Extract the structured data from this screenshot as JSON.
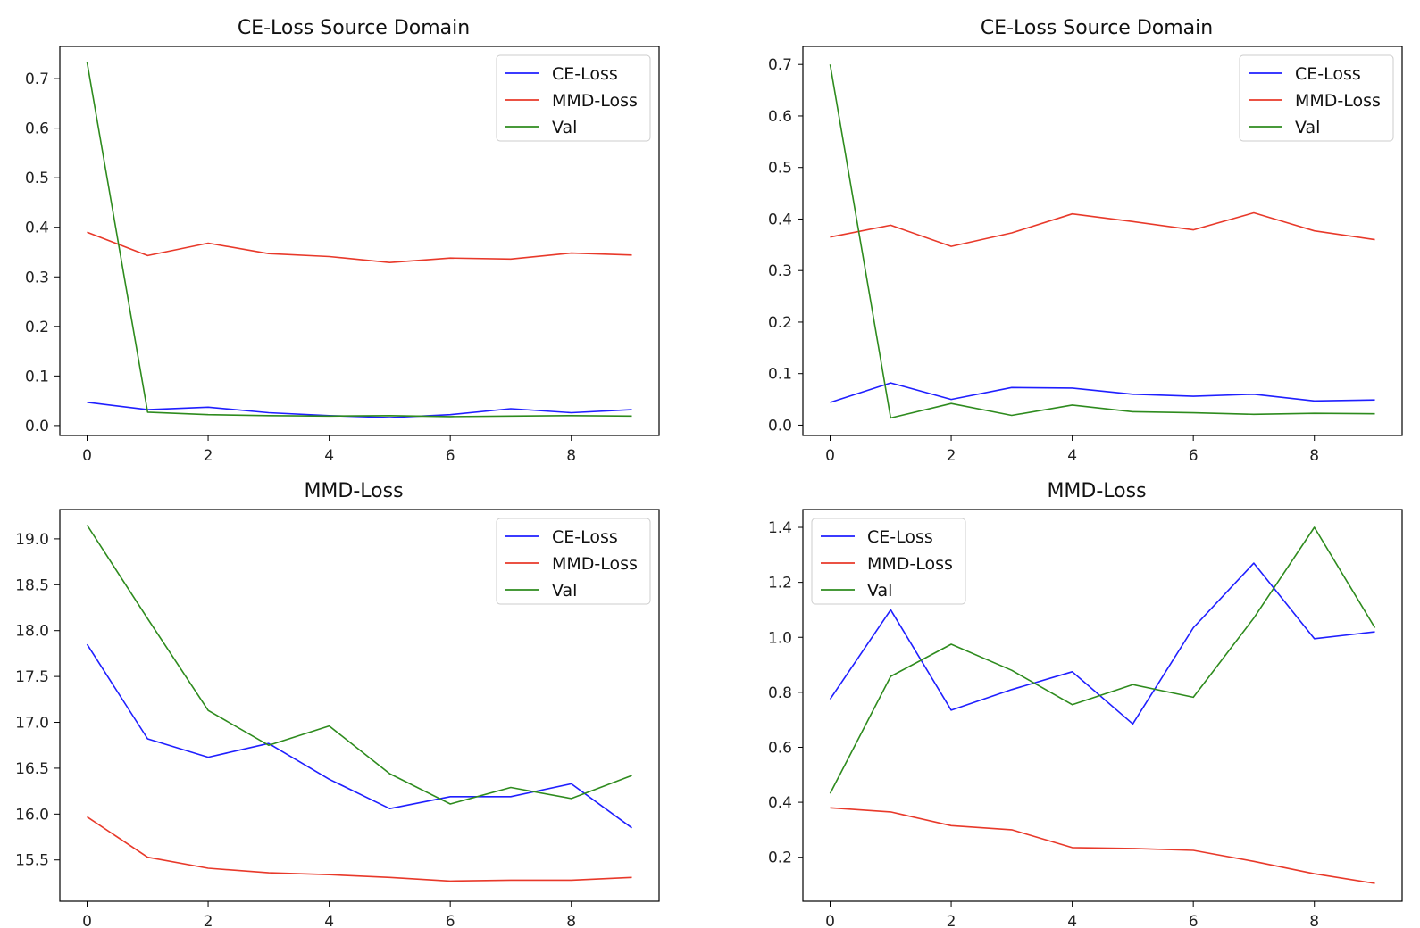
{
  "colors": {
    "ce_loss": "#1f1fff",
    "mmd_loss": "#e8392a",
    "val": "#2e8b1e",
    "frame": "#000000",
    "legend_border": "#cccccc"
  },
  "chart_data": [
    {
      "type": "line",
      "title": "CE-Loss Source Domain",
      "x": [
        0,
        1,
        2,
        3,
        4,
        5,
        6,
        7,
        8,
        9
      ],
      "xlim": [
        -0.45,
        9.45
      ],
      "ylim": [
        -0.02,
        0.765
      ],
      "xticks": [
        0,
        2,
        4,
        6,
        8
      ],
      "yticks": [
        0.0,
        0.1,
        0.2,
        0.3,
        0.4,
        0.5,
        0.6,
        0.7
      ],
      "ytick_labels": [
        "0.0",
        "0.1",
        "0.2",
        "0.3",
        "0.4",
        "0.5",
        "0.6",
        "0.7"
      ],
      "legend_position": "upper right",
      "series": [
        {
          "name": "CE-Loss",
          "color_key": "ce_loss",
          "values": [
            0.047,
            0.032,
            0.037,
            0.026,
            0.02,
            0.016,
            0.022,
            0.034,
            0.026,
            0.032
          ]
        },
        {
          "name": "MMD-Loss",
          "color_key": "mmd_loss",
          "values": [
            0.39,
            0.343,
            0.368,
            0.347,
            0.341,
            0.329,
            0.338,
            0.336,
            0.348,
            0.344
          ]
        },
        {
          "name": "Val",
          "color_key": "val",
          "values": [
            0.733,
            0.027,
            0.022,
            0.02,
            0.019,
            0.02,
            0.018,
            0.019,
            0.02,
            0.019
          ]
        }
      ]
    },
    {
      "type": "line",
      "title": "CE-Loss Source Domain",
      "x": [
        0,
        1,
        2,
        3,
        4,
        5,
        6,
        7,
        8,
        9
      ],
      "xlim": [
        -0.45,
        9.45
      ],
      "ylim": [
        -0.02,
        0.735
      ],
      "xticks": [
        0,
        2,
        4,
        6,
        8
      ],
      "yticks": [
        0.0,
        0.1,
        0.2,
        0.3,
        0.4,
        0.5,
        0.6,
        0.7
      ],
      "ytick_labels": [
        "0.0",
        "0.1",
        "0.2",
        "0.3",
        "0.4",
        "0.5",
        "0.6",
        "0.7"
      ],
      "legend_position": "upper right",
      "series": [
        {
          "name": "CE-Loss",
          "color_key": "ce_loss",
          "values": [
            0.044,
            0.082,
            0.05,
            0.073,
            0.072,
            0.06,
            0.056,
            0.06,
            0.047,
            0.049
          ]
        },
        {
          "name": "MMD-Loss",
          "color_key": "mmd_loss",
          "values": [
            0.365,
            0.388,
            0.347,
            0.373,
            0.41,
            0.395,
            0.379,
            0.412,
            0.377,
            0.36
          ]
        },
        {
          "name": "Val",
          "color_key": "val",
          "values": [
            0.7,
            0.014,
            0.042,
            0.019,
            0.039,
            0.026,
            0.024,
            0.021,
            0.023,
            0.022
          ]
        }
      ]
    },
    {
      "type": "line",
      "title": "MMD-Loss",
      "x": [
        0,
        1,
        2,
        3,
        4,
        5,
        6,
        7,
        8,
        9
      ],
      "xlim": [
        -0.45,
        9.45
      ],
      "ylim": [
        15.05,
        19.32
      ],
      "xticks": [
        0,
        2,
        4,
        6,
        8
      ],
      "yticks": [
        15.5,
        16.0,
        16.5,
        17.0,
        17.5,
        18.0,
        18.5,
        19.0
      ],
      "ytick_labels": [
        "15.5",
        "16.0",
        "16.5",
        "17.0",
        "17.5",
        "18.0",
        "18.5",
        "19.0"
      ],
      "legend_position": "upper right",
      "series": [
        {
          "name": "CE-Loss",
          "color_key": "ce_loss",
          "values": [
            17.85,
            16.82,
            16.62,
            16.77,
            16.38,
            16.06,
            16.19,
            16.19,
            16.33,
            15.85
          ]
        },
        {
          "name": "MMD-Loss",
          "color_key": "mmd_loss",
          "values": [
            15.97,
            15.53,
            15.41,
            15.36,
            15.34,
            15.31,
            15.27,
            15.28,
            15.28,
            15.31
          ]
        },
        {
          "name": "Val",
          "color_key": "val",
          "values": [
            19.15,
            18.13,
            17.13,
            16.75,
            16.96,
            16.44,
            16.11,
            16.29,
            16.17,
            16.42
          ]
        }
      ]
    },
    {
      "type": "line",
      "title": "MMD-Loss",
      "x": [
        0,
        1,
        2,
        3,
        4,
        5,
        6,
        7,
        8,
        9
      ],
      "xlim": [
        -0.45,
        9.45
      ],
      "ylim": [
        0.04,
        1.465
      ],
      "xticks": [
        0,
        2,
        4,
        6,
        8
      ],
      "yticks": [
        0.2,
        0.4,
        0.6,
        0.8,
        1.0,
        1.2,
        1.4
      ],
      "ytick_labels": [
        "0.2",
        "0.4",
        "0.6",
        "0.8",
        "1.0",
        "1.2",
        "1.4"
      ],
      "legend_position": "upper left",
      "series": [
        {
          "name": "CE-Loss",
          "color_key": "ce_loss",
          "values": [
            0.775,
            1.1,
            0.735,
            0.81,
            0.875,
            0.685,
            1.035,
            1.27,
            0.995,
            1.02
          ]
        },
        {
          "name": "MMD-Loss",
          "color_key": "mmd_loss",
          "values": [
            0.38,
            0.365,
            0.315,
            0.3,
            0.235,
            0.232,
            0.225,
            0.185,
            0.14,
            0.105
          ]
        },
        {
          "name": "Val",
          "color_key": "val",
          "values": [
            0.432,
            0.858,
            0.975,
            0.88,
            0.755,
            0.828,
            0.782,
            1.07,
            1.4,
            1.035
          ]
        }
      ]
    }
  ]
}
